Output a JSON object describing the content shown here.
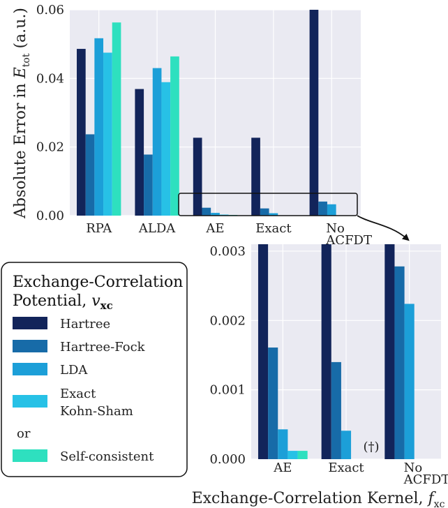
{
  "colors": {
    "Hartree": "#12245a",
    "Hartree-Fock": "#176ba8",
    "LDA": "#1c9fd8",
    "Exact Kohn-Sham": "#27c1e6",
    "Self-consistent": "#2ee0bf",
    "panel_bg": "#eaeaf2",
    "grid": "#ffffff"
  },
  "chart_data": [
    {
      "type": "bar",
      "ylabel_text": "Absolute Error in ",
      "ylabel_symbol": "E",
      "ylabel_sub": "tot",
      "ylabel_unit": " (a.u.)",
      "ylim": [
        0,
        0.06
      ],
      "yticks": [
        "0.00",
        "0.02",
        "0.04",
        "0.06"
      ],
      "ytick_values": [
        0,
        0.02,
        0.04,
        0.06
      ],
      "categories": [
        "RPA",
        "ALDA",
        "AE",
        "Exact",
        "No\nACFDT"
      ],
      "grid": true,
      "series": [
        {
          "name": "Hartree",
          "values": [
            0.0486,
            0.0369,
            0.0227,
            0.0227,
            0.0605
          ]
        },
        {
          "name": "Hartree-Fock",
          "values": [
            0.0237,
            0.0178,
            0.0023,
            0.0021,
            0.0041
          ]
        },
        {
          "name": "LDA",
          "values": [
            0.0517,
            0.043,
            0.0008,
            0.0007,
            0.0033
          ]
        },
        {
          "name": "Exact Kohn-Sham",
          "values": [
            0.0475,
            0.0389,
            0.0003,
            0.0,
            0.0
          ]
        },
        {
          "name": "Self-consistent",
          "values": [
            0.0563,
            0.0464,
            0.0002,
            0.0,
            0.0
          ]
        }
      ]
    },
    {
      "type": "bar",
      "xlabel_text": "Exchange-Correlation Kernel, ",
      "xlabel_symbol": "f",
      "xlabel_sub": "xc",
      "ylim": [
        0,
        0.0031
      ],
      "yticks": [
        "0.000",
        "0.001",
        "0.002",
        "0.003"
      ],
      "ytick_values": [
        0,
        0.001,
        0.002,
        0.003
      ],
      "categories": [
        "AE",
        "Exact",
        "No\nACFDT"
      ],
      "grid": true,
      "annotation": "(†)",
      "series": [
        {
          "name": "Hartree",
          "values": [
            0.0227,
            0.0227,
            0.0605
          ]
        },
        {
          "name": "Hartree-Fock",
          "values": [
            0.00161,
            0.0014,
            0.00278
          ]
        },
        {
          "name": "LDA",
          "values": [
            0.00043,
            0.00041,
            0.00224
          ]
        },
        {
          "name": "Exact Kohn-Sham",
          "values": [
            0.00012,
            0.0,
            0.0
          ]
        },
        {
          "name": "Self-consistent",
          "values": [
            0.00012,
            0.0,
            0.0
          ]
        }
      ]
    }
  ],
  "legend": {
    "title_line1": "Exchange-Correlation",
    "title_line2": "Potential, ",
    "title_symbol": "v",
    "title_sub": "xc",
    "or_label": "or",
    "placement": "bottom-left",
    "items": [
      {
        "label": "Hartree",
        "color": "#12245a"
      },
      {
        "label": "Hartree-Fock",
        "color": "#176ba8"
      },
      {
        "label": "LDA",
        "color": "#1c9fd8"
      },
      {
        "label": "Exact",
        "label2": "Kohn-Sham",
        "color": "#27c1e6"
      },
      {
        "label": "Self-consistent",
        "color": "#2ee0bf"
      }
    ]
  }
}
